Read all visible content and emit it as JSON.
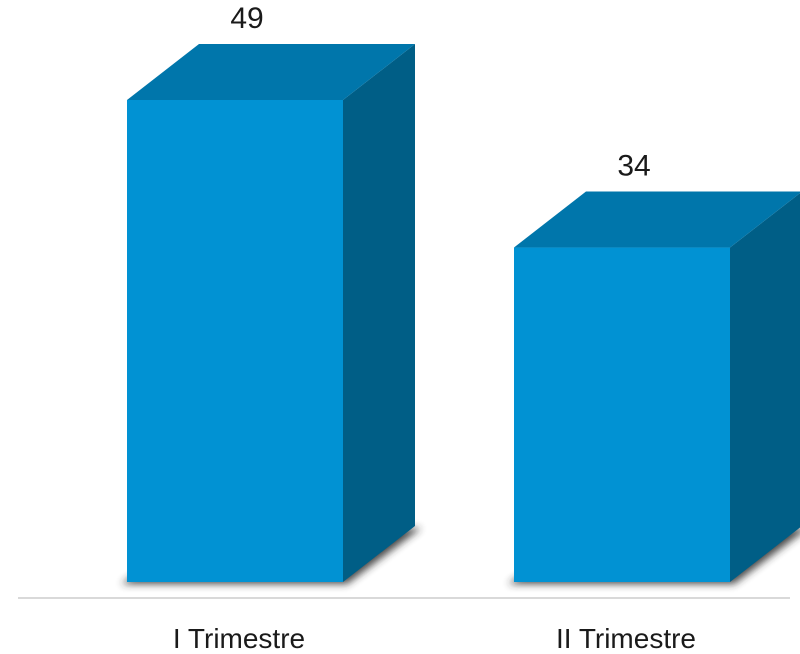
{
  "chart_data": {
    "type": "bar",
    "categories": [
      "I Trimestre",
      "II Trimestre"
    ],
    "values": [
      49,
      34
    ],
    "title": "",
    "xlabel": "",
    "ylabel": "",
    "ylim": [
      0,
      49
    ],
    "grid": false,
    "legend": "none",
    "style": "3d-columns"
  },
  "colors": {
    "bar_front": "#0192d3",
    "bar_top": "#0076ab",
    "bar_side": "#005e86",
    "shadow": "#2b2b2b",
    "axis_line": "#d9d9d9"
  }
}
